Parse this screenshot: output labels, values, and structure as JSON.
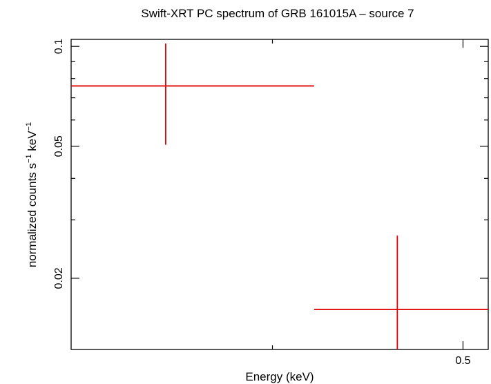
{
  "chart_data": {
    "type": "scatter",
    "title": "Swift-XRT PC spectrum of GRB 161015A – source 7",
    "xlabel": "Energy (keV)",
    "ylabel_main": "normalized counts s",
    "ylabel_mid": " keV",
    "ylabel_exp": "−1",
    "x_scale": "log",
    "y_scale": "log",
    "xlim": [
      0.316,
      0.515
    ],
    "ylim": [
      0.0122,
      0.105
    ],
    "x_major_ticks": [
      {
        "value": 0.5,
        "label": "0.5"
      }
    ],
    "x_minor_ticks": [
      0.4
    ],
    "y_major_ticks": [
      {
        "value": 0.1,
        "label": "0.1"
      },
      {
        "value": 0.05,
        "label": "0.05"
      },
      {
        "value": 0.02,
        "label": "0.02"
      }
    ],
    "y_minor_ticks": [
      0.09,
      0.08,
      0.07,
      0.06,
      0.04,
      0.03
    ],
    "grid": false,
    "series": [
      {
        "color": "#e00000",
        "points": [
          {
            "x": 0.353,
            "xlo": 0.316,
            "xhi": 0.42,
            "y": 0.076,
            "ylo": 0.0505,
            "yhi": 0.102
          },
          {
            "x": 0.463,
            "xlo": 0.42,
            "xhi": 0.515,
            "y": 0.0161,
            "ylo": 0.0122,
            "yhi": 0.0269
          }
        ]
      }
    ]
  }
}
